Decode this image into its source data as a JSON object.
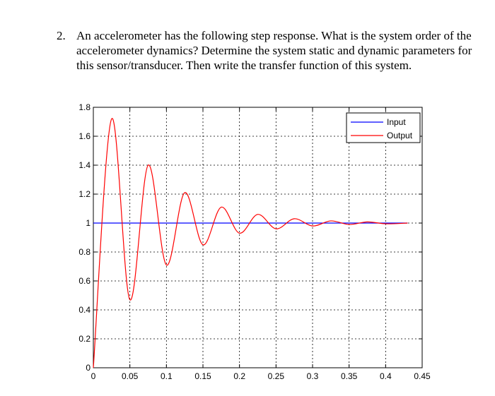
{
  "question": {
    "number": "2.",
    "text": "An accelerometer has the following step response. What is the system order of the accelerometer dynamics? Determine the system static and dynamic parameters for this sensor/transducer. Then write the transfer function of this system."
  },
  "chart_data": {
    "type": "line",
    "title": "",
    "xlabel": "",
    "ylabel": "",
    "xlim": [
      0,
      0.45
    ],
    "ylim": [
      0,
      1.8
    ],
    "x_ticks": [
      "0",
      "0.05",
      "0.1",
      "0.15",
      "0.2",
      "0.25",
      "0.3",
      "0.35",
      "0.4",
      "0.45"
    ],
    "y_ticks": [
      "0",
      "0.2",
      "0.4",
      "0.6",
      "0.8",
      "1",
      "1.2",
      "1.4",
      "1.6",
      "1.8"
    ],
    "grid": true,
    "legend_position": "top-right",
    "series": [
      {
        "name": "Input",
        "color": "#0000ff",
        "x": [
          0,
          0.43
        ],
        "y": [
          1,
          1
        ]
      },
      {
        "name": "Output",
        "color": "#ff0000",
        "x": [
          0,
          0.025,
          0.05,
          0.075,
          0.1,
          0.125,
          0.15,
          0.175,
          0.2,
          0.225,
          0.25,
          0.275,
          0.3,
          0.325,
          0.35,
          0.375,
          0.4,
          0.43
        ],
        "y": [
          0,
          1.72,
          0.47,
          1.4,
          0.71,
          1.21,
          0.85,
          1.11,
          0.93,
          1.06,
          0.96,
          1.03,
          0.98,
          1.015,
          0.99,
          1.008,
          0.995,
          1.0
        ]
      }
    ]
  }
}
